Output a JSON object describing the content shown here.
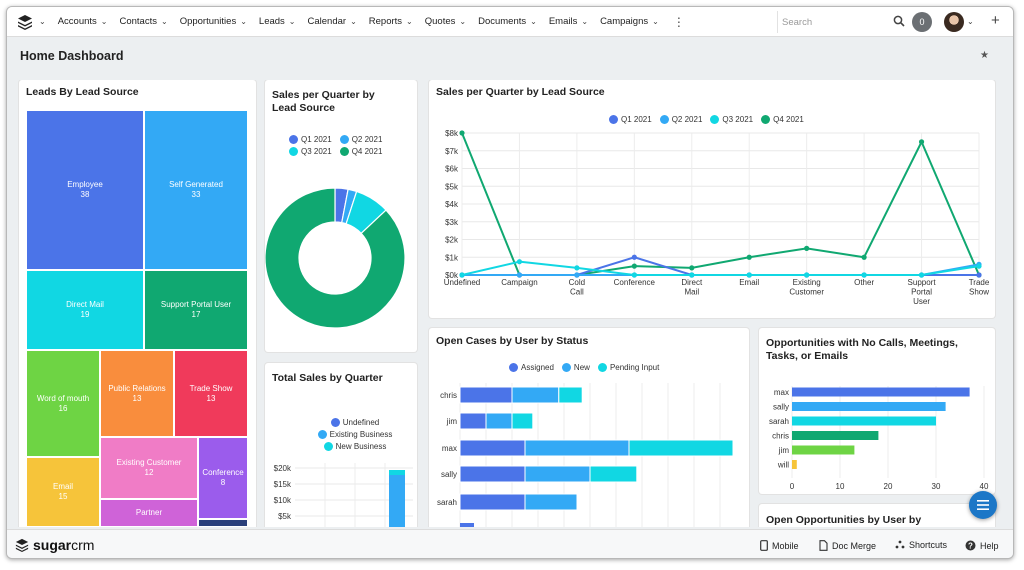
{
  "nav": {
    "items": [
      "Accounts",
      "Contacts",
      "Opportunities",
      "Leads",
      "Calendar",
      "Reports",
      "Quotes",
      "Documents",
      "Emails",
      "Campaigns"
    ],
    "search_placeholder": "Search",
    "notifications": "0"
  },
  "page": {
    "title": "Home Dashboard"
  },
  "treemap": {
    "title": "Leads By Lead Source",
    "cells": [
      {
        "label": "Employee",
        "value": "38",
        "color": "#4b74e8"
      },
      {
        "label": "Self Generated",
        "value": "33",
        "color": "#33a9f5"
      },
      {
        "label": "Direct Mail",
        "value": "19",
        "color": "#11d7e3"
      },
      {
        "label": "Support Portal User",
        "value": "17",
        "color": "#10a871"
      },
      {
        "label": "Word of mouth",
        "value": "16",
        "color": "#6ed444"
      },
      {
        "label": "Public Relations",
        "value": "13",
        "color": "#f98d3d"
      },
      {
        "label": "Trade Show",
        "value": "13",
        "color": "#f03a5b"
      },
      {
        "label": "Existing Customer",
        "value": "12",
        "color": "#f07cc6"
      },
      {
        "label": "Conference",
        "value": "8",
        "color": "#9b5cec"
      },
      {
        "label": "Email",
        "value": "15",
        "color": "#f6c43a"
      },
      {
        "label": "Partner",
        "value": "",
        "color": "#cf63d8"
      }
    ]
  },
  "donut": {
    "title": "Sales per Quarter by Lead Source",
    "legend": [
      {
        "label": "Q1 2021",
        "color": "#4b74e8"
      },
      {
        "label": "Q2 2021",
        "color": "#33a9f5"
      },
      {
        "label": "Q3 2021",
        "color": "#11d7e3"
      },
      {
        "label": "Q4 2021",
        "color": "#10a871"
      }
    ]
  },
  "total_sales": {
    "title": "Total Sales by Quarter",
    "legend": [
      {
        "label": "Undefined",
        "color": "#4b74e8"
      },
      {
        "label": "Existing Business",
        "color": "#33a9f5"
      },
      {
        "label": "New Business",
        "color": "#11d7e3"
      }
    ],
    "yticks": [
      "$20k",
      "$15k",
      "$10k",
      "$5k"
    ]
  },
  "line_chart": {
    "title": "Sales per Quarter by Lead Source",
    "yticks": [
      "$8k",
      "$7k",
      "$6k",
      "$5k",
      "$4k",
      "$3k",
      "$2k",
      "$1k",
      "$0k"
    ],
    "categories": [
      "Undefined",
      "Campaign",
      "Cold Call",
      "Conference",
      "Direct Mail",
      "Email",
      "Existing Customer",
      "Other",
      "Support Portal User",
      "Trade Show"
    ]
  },
  "open_cases": {
    "title": "Open Cases by User by Status",
    "legend": [
      {
        "label": "Assigned",
        "color": "#4b74e8"
      },
      {
        "label": "New",
        "color": "#33a9f5"
      },
      {
        "label": "Pending Input",
        "color": "#11d7e3"
      }
    ],
    "users": [
      "chris",
      "jim",
      "max",
      "sally",
      "sarah"
    ]
  },
  "opps_no_calls": {
    "title": "Opportunities with No Calls, Meetings, Tasks, or Emails",
    "users": [
      "max",
      "sally",
      "sarah",
      "chris",
      "jim",
      "will"
    ],
    "xticks": [
      "0",
      "10",
      "20",
      "30",
      "40"
    ]
  },
  "open_opps": {
    "title": "Open Opportunities by User by"
  },
  "footer": {
    "brand_a": "sugar",
    "brand_b": "crm",
    "mobile": "Mobile",
    "doc_merge": "Doc Merge",
    "shortcuts": "Shortcuts",
    "help": "Help"
  },
  "chart_data": [
    {
      "type": "treemap",
      "title": "Leads By Lead Source",
      "categories": [
        "Employee",
        "Self Generated",
        "Direct Mail",
        "Support Portal User",
        "Word of mouth",
        "Public Relations",
        "Trade Show",
        "Existing Customer",
        "Conference",
        "Email",
        "Partner"
      ],
      "values": [
        38,
        33,
        19,
        17,
        16,
        13,
        13,
        12,
        8,
        15,
        null
      ]
    },
    {
      "type": "pie",
      "title": "Sales per Quarter by Lead Source",
      "categories": [
        "Q1 2021",
        "Q2 2021",
        "Q3 2021",
        "Q4 2021"
      ],
      "values": [
        3,
        2,
        8,
        87
      ]
    },
    {
      "type": "line",
      "title": "Sales per Quarter by Lead Source",
      "categories": [
        "Undefined",
        "Campaign",
        "Cold Call",
        "Conference",
        "Direct Mail",
        "Email",
        "Existing Customer",
        "Other",
        "Support Portal User",
        "Trade Show"
      ],
      "ylim": [
        0,
        8000
      ],
      "series": [
        {
          "name": "Q1 2021",
          "color": "#4b74e8",
          "values": [
            0,
            0,
            0,
            1000,
            0,
            0,
            0,
            0,
            0,
            0
          ]
        },
        {
          "name": "Q2 2021",
          "color": "#33a9f5",
          "values": [
            0,
            0,
            0,
            0,
            0,
            0,
            0,
            0,
            0,
            600
          ]
        },
        {
          "name": "Q3 2021",
          "color": "#11d7e3",
          "values": [
            0,
            750,
            400,
            0,
            0,
            0,
            0,
            0,
            0,
            500
          ]
        },
        {
          "name": "Q4 2021",
          "color": "#10a871",
          "values": [
            8000,
            0,
            0,
            500,
            400,
            1000,
            1500,
            1000,
            7500,
            0
          ]
        }
      ]
    },
    {
      "type": "bar",
      "title": "Open Cases by User by Status",
      "categories": [
        "chris",
        "jim",
        "max",
        "sally",
        "sarah"
      ],
      "series": [
        {
          "name": "Assigned",
          "values": [
            2,
            1,
            2.5,
            2.5,
            2.5
          ]
        },
        {
          "name": "New",
          "values": [
            1.8,
            1,
            4,
            2.5,
            2
          ]
        },
        {
          "name": "Pending Input",
          "values": [
            0.9,
            0.8,
            4,
            1.8,
            0
          ]
        }
      ]
    },
    {
      "type": "bar",
      "title": "Opportunities with No Calls, Meetings, Tasks, or Emails",
      "categories": [
        "max",
        "sally",
        "sarah",
        "chris",
        "jim",
        "will"
      ],
      "values": [
        37,
        32,
        30,
        18,
        13,
        1
      ],
      "xlim": [
        0,
        40
      ]
    }
  ]
}
